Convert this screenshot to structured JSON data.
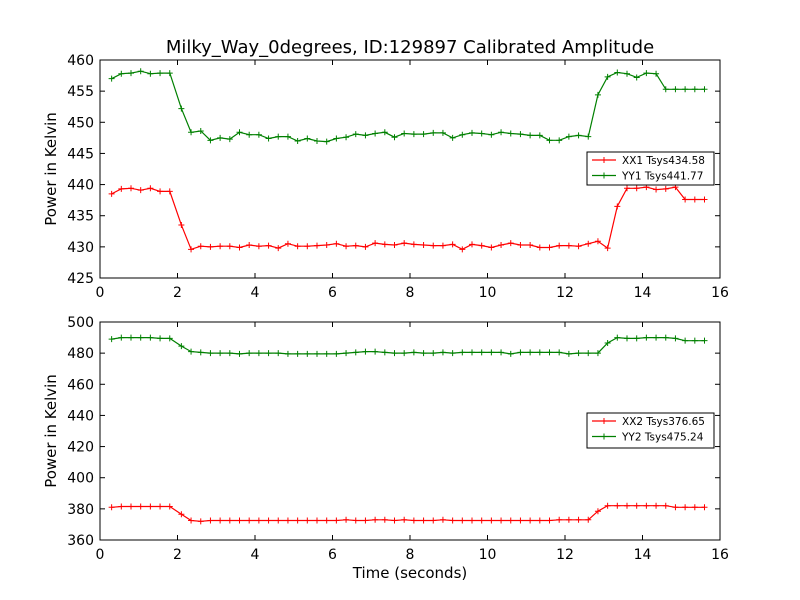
{
  "title": "Milky_Way_0degrees, ID:129897 Calibrated Amplitude",
  "xlabel": "Time (seconds)",
  "chart_data": [
    {
      "type": "line",
      "title": "Milky_Way_0degrees, ID:129897 Calibrated Amplitude",
      "xlabel": "",
      "ylabel": "Power in Kelvin",
      "xlim": [
        0,
        16
      ],
      "ylim": [
        425,
        460
      ],
      "xticks": [
        0,
        2,
        4,
        6,
        8,
        10,
        12,
        14,
        16
      ],
      "yticks": [
        425,
        430,
        435,
        440,
        445,
        450,
        455,
        460
      ],
      "grid": false,
      "legend_position": "center-right",
      "x": [
        0.3,
        0.55,
        0.8,
        1.05,
        1.3,
        1.55,
        1.8,
        2.1,
        2.35,
        2.6,
        2.85,
        3.1,
        3.35,
        3.6,
        3.85,
        4.1,
        4.35,
        4.6,
        4.85,
        5.1,
        5.35,
        5.6,
        5.85,
        6.1,
        6.35,
        6.6,
        6.85,
        7.1,
        7.35,
        7.6,
        7.85,
        8.1,
        8.35,
        8.6,
        8.85,
        9.1,
        9.35,
        9.6,
        9.85,
        10.1,
        10.35,
        10.6,
        10.85,
        11.1,
        11.35,
        11.6,
        11.85,
        12.1,
        12.35,
        12.6,
        12.85,
        13.1,
        13.35,
        13.6,
        13.85,
        14.1,
        14.35,
        14.6,
        14.85,
        15.1,
        15.35,
        15.6
      ],
      "series": [
        {
          "name": "XX1 Tsys434.58",
          "color": "#ff0000",
          "values": [
            438.5,
            439.3,
            439.4,
            439.1,
            439.4,
            438.9,
            438.9,
            433.5,
            429.6,
            430.1,
            430.0,
            430.1,
            430.1,
            429.9,
            430.3,
            430.1,
            430.2,
            429.8,
            430.5,
            430.1,
            430.1,
            430.2,
            430.3,
            430.5,
            430.1,
            430.2,
            430.0,
            430.6,
            430.4,
            430.3,
            430.6,
            430.4,
            430.3,
            430.2,
            430.2,
            430.4,
            429.6,
            430.4,
            430.2,
            429.9,
            430.3,
            430.6,
            430.3,
            430.3,
            429.9,
            429.9,
            430.2,
            430.2,
            430.1,
            430.5,
            430.9,
            429.8,
            436.5,
            439.4,
            439.4,
            439.6,
            439.2,
            439.3,
            439.6,
            437.6,
            437.6,
            437.6
          ]
        },
        {
          "name": "YY1 Tsys441.77",
          "color": "#008000",
          "values": [
            457.0,
            457.8,
            457.9,
            458.2,
            457.8,
            457.9,
            457.9,
            452.2,
            448.4,
            448.6,
            447.1,
            447.5,
            447.3,
            448.4,
            448.0,
            448.0,
            447.4,
            447.7,
            447.7,
            447.0,
            447.4,
            447.0,
            446.9,
            447.4,
            447.6,
            448.1,
            447.9,
            448.2,
            448.4,
            447.6,
            448.2,
            448.1,
            448.1,
            448.3,
            448.3,
            447.5,
            448.0,
            448.3,
            448.2,
            448.0,
            448.4,
            448.2,
            448.1,
            447.9,
            447.9,
            447.1,
            447.1,
            447.7,
            447.9,
            447.7,
            454.4,
            457.3,
            458.0,
            457.8,
            457.2,
            457.9,
            457.8,
            455.3,
            455.3,
            455.3,
            455.3,
            455.3
          ]
        }
      ]
    },
    {
      "type": "line",
      "title": "",
      "xlabel": "Time (seconds)",
      "ylabel": "Power in Kelvin",
      "xlim": [
        0,
        16
      ],
      "ylim": [
        360,
        500
      ],
      "xticks": [
        0,
        2,
        4,
        6,
        8,
        10,
        12,
        14,
        16
      ],
      "yticks": [
        360,
        380,
        400,
        420,
        440,
        460,
        480,
        500
      ],
      "grid": false,
      "legend_position": "center-right",
      "x": [
        0.3,
        0.55,
        0.8,
        1.05,
        1.3,
        1.55,
        1.8,
        2.1,
        2.35,
        2.6,
        2.85,
        3.1,
        3.35,
        3.6,
        3.85,
        4.1,
        4.35,
        4.6,
        4.85,
        5.1,
        5.35,
        5.6,
        5.85,
        6.1,
        6.35,
        6.6,
        6.85,
        7.1,
        7.35,
        7.6,
        7.85,
        8.1,
        8.35,
        8.6,
        8.85,
        9.1,
        9.35,
        9.6,
        9.85,
        10.1,
        10.35,
        10.6,
        10.85,
        11.1,
        11.35,
        11.6,
        11.85,
        12.1,
        12.35,
        12.6,
        12.85,
        13.1,
        13.35,
        13.6,
        13.85,
        14.1,
        14.35,
        14.6,
        14.85,
        15.1,
        15.35,
        15.6
      ],
      "series": [
        {
          "name": "XX2 Tsys376.65",
          "color": "#ff0000",
          "values": [
            381,
            381.5,
            381.5,
            381.5,
            381.5,
            381.5,
            381.5,
            376.5,
            372.5,
            372,
            372.5,
            372.5,
            372.5,
            372.5,
            372.5,
            372.5,
            372.5,
            372.5,
            372.5,
            372.5,
            372.5,
            372.5,
            372.5,
            372.5,
            373,
            372.5,
            372.5,
            373,
            373,
            372.5,
            373,
            372.5,
            372.5,
            372.5,
            373,
            372.5,
            372.5,
            372.5,
            372.5,
            372.5,
            372.5,
            372.5,
            372.5,
            372.5,
            372.5,
            372.5,
            373,
            373,
            373,
            373,
            378.5,
            382,
            382,
            382,
            382,
            382,
            382,
            382,
            381,
            381,
            381,
            381
          ]
        },
        {
          "name": "YY2 Tsys475.24",
          "color": "#008000",
          "values": [
            489,
            490,
            490,
            490,
            490,
            489.5,
            489.5,
            484.5,
            481,
            480.5,
            480,
            480,
            480,
            479.5,
            480,
            480,
            480,
            480,
            479.5,
            479.5,
            479.5,
            479.5,
            479.5,
            479.5,
            480,
            480.5,
            481,
            481,
            480.5,
            480,
            480,
            480.5,
            480,
            480,
            480.5,
            480,
            480.5,
            480.5,
            480.5,
            480.5,
            480.5,
            479.5,
            480.5,
            480.5,
            480.5,
            480.5,
            480.5,
            479.5,
            480,
            480,
            480,
            486.5,
            490,
            489.5,
            489.5,
            490,
            490,
            490,
            489.5,
            488,
            488,
            488
          ]
        }
      ]
    }
  ]
}
